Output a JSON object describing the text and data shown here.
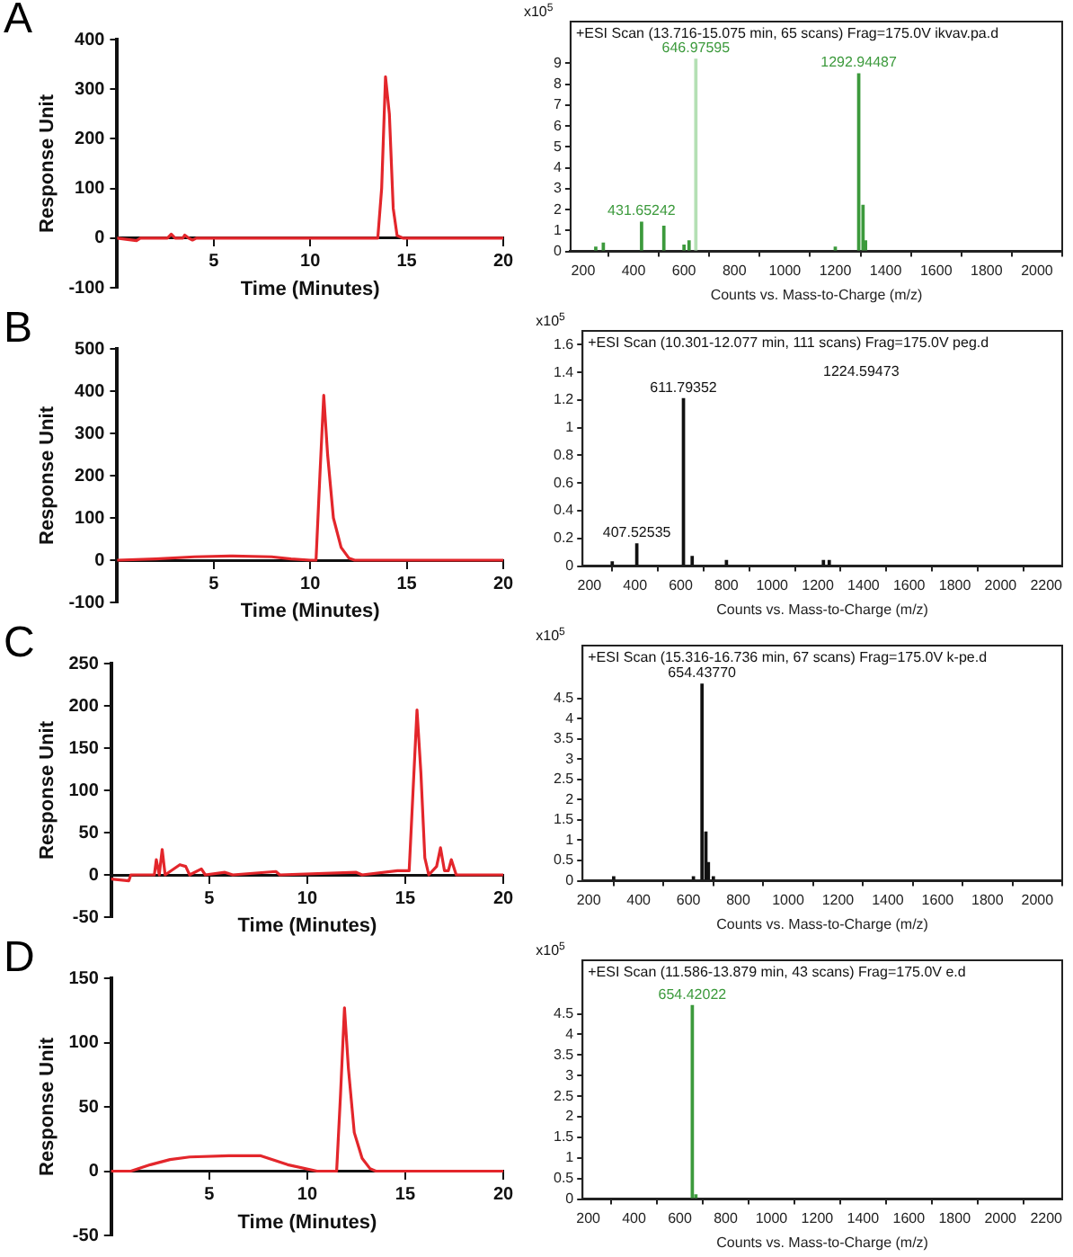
{
  "chart_data": [
    {
      "type": "line",
      "annotations": [
        "A"
      ],
      "xlabel": "Time (Minutes)",
      "ylabel": "Response Unit",
      "xlim": [
        0,
        20
      ],
      "xticks": [
        5,
        10,
        15,
        20
      ],
      "ylim": [
        -100,
        400
      ],
      "yticks": [
        -100,
        0,
        100,
        200,
        300,
        400
      ],
      "x": [
        0,
        1,
        1.2,
        2.6,
        2.8,
        3.0,
        3.4,
        3.5,
        3.7,
        3.9,
        4.1,
        13.5,
        13.7,
        13.9,
        14.1,
        14.3,
        14.5,
        14.8,
        20
      ],
      "series": [
        {
          "color": "#e3262b",
          "values": [
            0,
            -5,
            0,
            0,
            8,
            0,
            0,
            6,
            0,
            -4,
            0,
            0,
            100,
            325,
            250,
            60,
            5,
            0,
            0
          ]
        }
      ]
    },
    {
      "type": "bar",
      "title": "+ESI Scan (13.716-15.075 min, 65 scans) Frag=175.0V ikvav.pa.d",
      "xlabel": "Counts vs. Mass-to-Charge (m/z)",
      "ylabel": "x10$^{5}$",
      "xlim": [
        150,
        2100
      ],
      "xticks": [
        200,
        400,
        600,
        800,
        1000,
        1200,
        1400,
        1600,
        1800,
        2000
      ],
      "ylim": [
        0,
        11
      ],
      "yticks": [
        0,
        1,
        2,
        3,
        4,
        5,
        6,
        7,
        8,
        9
      ],
      "series": [
        {
          "color": "#3c9a3c",
          "x": [
            250,
            280,
            431.65242,
            520,
            600,
            620,
            646.97595,
            1200,
            1292.94487,
            1310,
            1320
          ],
          "values": [
            0.2,
            0.4,
            1.4,
            1.2,
            0.3,
            0.5,
            9.2,
            0.2,
            8.5,
            2.2,
            0.5
          ],
          "colors": [
            "#3c9a3c",
            "#3c9a3c",
            "#3c9a3c",
            "#3c9a3c",
            "#3c9a3c",
            "#3c9a3c",
            "#b4e0b4",
            "#3c9a3c",
            "#3c9a3c",
            "#3c9a3c",
            "#3c9a3c"
          ]
        }
      ],
      "annotations": [
        {
          "text": "431.65242",
          "x": 431.65242,
          "y": 1.4
        },
        {
          "text": "646.97595",
          "x": 646.97595,
          "y": 9.2
        },
        {
          "text": "1292.94487",
          "x": 1292.94487,
          "y": 8.5
        }
      ]
    },
    {
      "type": "line",
      "annotations": [
        "B"
      ],
      "xlabel": "Time (Minutes)",
      "ylabel": "Response Unit",
      "xlim": [
        0,
        20
      ],
      "xticks": [
        5,
        10,
        15,
        20
      ],
      "ylim": [
        -100,
        500
      ],
      "yticks": [
        -100,
        0,
        100,
        200,
        300,
        400,
        500
      ],
      "x": [
        0,
        2,
        4,
        6,
        8,
        9,
        10,
        10.3,
        10.5,
        10.7,
        10.9,
        11.2,
        11.6,
        12,
        12.3,
        20
      ],
      "series": [
        {
          "color": "#e3262b",
          "values": [
            0,
            3,
            8,
            10,
            8,
            3,
            0,
            0,
            200,
            390,
            250,
            100,
            30,
            5,
            0,
            0
          ]
        }
      ]
    },
    {
      "type": "bar",
      "title": "+ESI Scan (10.301-12.077 min, 111 scans) Frag=175.0V peg.d",
      "xlabel": "Counts vs. Mass-to-Charge (m/z)",
      "ylabel": "x10$^{5}$",
      "xlim": [
        170,
        2270
      ],
      "xticks": [
        200,
        400,
        600,
        800,
        1000,
        1200,
        1400,
        1600,
        1800,
        2000,
        2200
      ],
      "ylim": [
        0,
        1.7
      ],
      "yticks": [
        0,
        0.2,
        0.4,
        0.6,
        0.8,
        1,
        1.2,
        1.4,
        1.6
      ],
      "series": [
        {
          "color": "#111111",
          "x": [
            300,
            407.52535,
            611.79352,
            650,
            800,
            1224.59473,
            1250
          ],
          "values": [
            0.03,
            0.16,
            1.21,
            0.07,
            0.04,
            0.04,
            0.04
          ]
        }
      ],
      "annotations": [
        {
          "text": "407.52535",
          "x": 407.52535,
          "y": 0.16
        },
        {
          "text": "611.79352",
          "x": 611.79352,
          "y": 1.21
        },
        "1224.59473"
      ]
    },
    {
      "type": "line",
      "annotations": [
        "C"
      ],
      "xlabel": "Time (Minutes)",
      "ylabel": "Response Unit",
      "xlim": [
        0,
        20
      ],
      "xticks": [
        5,
        10,
        15,
        20
      ],
      "ylim": [
        -50,
        250
      ],
      "yticks": [
        -50,
        0,
        50,
        100,
        150,
        200,
        250
      ],
      "x": [
        0,
        0.9,
        1,
        2.2,
        2.3,
        2.45,
        2.6,
        2.75,
        3.5,
        3.8,
        4,
        4.6,
        4.8,
        5.8,
        6.2,
        8.4,
        8.6,
        12.5,
        12.8,
        14.6,
        15.2,
        15.4,
        15.6,
        15.8,
        16,
        16.2,
        16.6,
        16.8,
        17,
        17.2,
        17.35,
        17.6,
        20
      ],
      "series": [
        {
          "color": "#e3262b",
          "values": [
            -5,
            -7,
            0,
            0,
            18,
            0,
            30,
            0,
            12,
            10,
            0,
            7,
            0,
            3,
            0,
            4,
            0,
            3,
            0,
            5,
            5,
            100,
            195,
            120,
            20,
            0,
            10,
            32,
            5,
            5,
            18,
            0,
            0
          ]
        }
      ]
    },
    {
      "type": "bar",
      "title": "+ESI Scan (15.316-16.736 min, 67 scans) Frag=175.0V k-pe.d",
      "xlabel": "Counts vs. Mass-to-Charge (m/z)",
      "ylabel": "x10$^{5}$",
      "xlim": [
        175,
        2100
      ],
      "xticks": [
        200,
        400,
        600,
        800,
        1000,
        1200,
        1400,
        1600,
        1800,
        2000
      ],
      "ylim": [
        0,
        5.8
      ],
      "yticks": [
        0,
        0.5,
        1,
        1.5,
        2,
        2.5,
        3,
        3.5,
        4,
        4.5
      ],
      "series": [
        {
          "color": "#111111",
          "x": [
            300,
            620,
            654.4377,
            670,
            680,
            700
          ],
          "values": [
            0.1,
            0.1,
            4.85,
            1.2,
            0.45,
            0.1
          ]
        }
      ],
      "annotations": [
        {
          "text": "654.43770",
          "x": 654.4377,
          "y": 4.85
        }
      ]
    },
    {
      "type": "line",
      "annotations": [
        "D"
      ],
      "xlabel": "Time (Minutes)",
      "ylabel": "Response Unit",
      "xlim": [
        0,
        20
      ],
      "xticks": [
        5,
        10,
        15,
        20
      ],
      "ylim": [
        -50,
        150
      ],
      "yticks": [
        -50,
        0,
        50,
        100,
        150
      ],
      "x": [
        0,
        1,
        2,
        3,
        4,
        6,
        7.6,
        9,
        10.5,
        11.5,
        11.7,
        11.9,
        12.1,
        12.4,
        12.8,
        13.2,
        13.5,
        20
      ],
      "series": [
        {
          "color": "#e3262b",
          "values": [
            0,
            0,
            5,
            9,
            11,
            12,
            12,
            5,
            0,
            0,
            60,
            127,
            80,
            30,
            10,
            2,
            0,
            0
          ]
        }
      ]
    },
    {
      "type": "bar",
      "title": "+ESI Scan (11.586-13.879 min, 43 scans) Frag=175.0V e.d",
      "xlabel": "Counts vs. Mass-to-Charge (m/z)",
      "ylabel": "x10$^{5}$",
      "xlim": [
        175,
        2270
      ],
      "xticks": [
        200,
        400,
        600,
        800,
        1000,
        1200,
        1400,
        1600,
        1800,
        2000,
        2200
      ],
      "ylim": [
        0,
        5.8
      ],
      "yticks": [
        0,
        0.5,
        1,
        1.5,
        2,
        2.5,
        3,
        3.5,
        4,
        4.5
      ],
      "series": [
        {
          "color": "#3c9a3c",
          "x": [
            654.42022,
            670
          ],
          "values": [
            4.7,
            0.1
          ]
        }
      ],
      "annotations": [
        {
          "text": "654.42022",
          "x": 654.42022,
          "y": 4.7
        }
      ]
    }
  ]
}
